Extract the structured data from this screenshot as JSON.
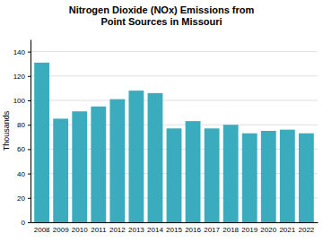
{
  "chart_data": {
    "type": "bar",
    "title": "Nitrogen Dioxide (NOx) Emissions from\nPoint Sources in Missouri",
    "ylabel": "Thousands",
    "categories": [
      "2008",
      "2009",
      "2010",
      "2011",
      "2012",
      "2013",
      "2014",
      "2015",
      "2016",
      "2017",
      "2018",
      "2019",
      "2020",
      "2021",
      "2022"
    ],
    "values": [
      131,
      85,
      91,
      95,
      101,
      108,
      106,
      77,
      83,
      77,
      80,
      73,
      75,
      76,
      73
    ],
    "color": "#3AACBE",
    "ylim": [
      0,
      150
    ],
    "yticks": [
      0,
      20,
      40,
      60,
      80,
      100,
      120,
      140
    ],
    "grid": true
  }
}
